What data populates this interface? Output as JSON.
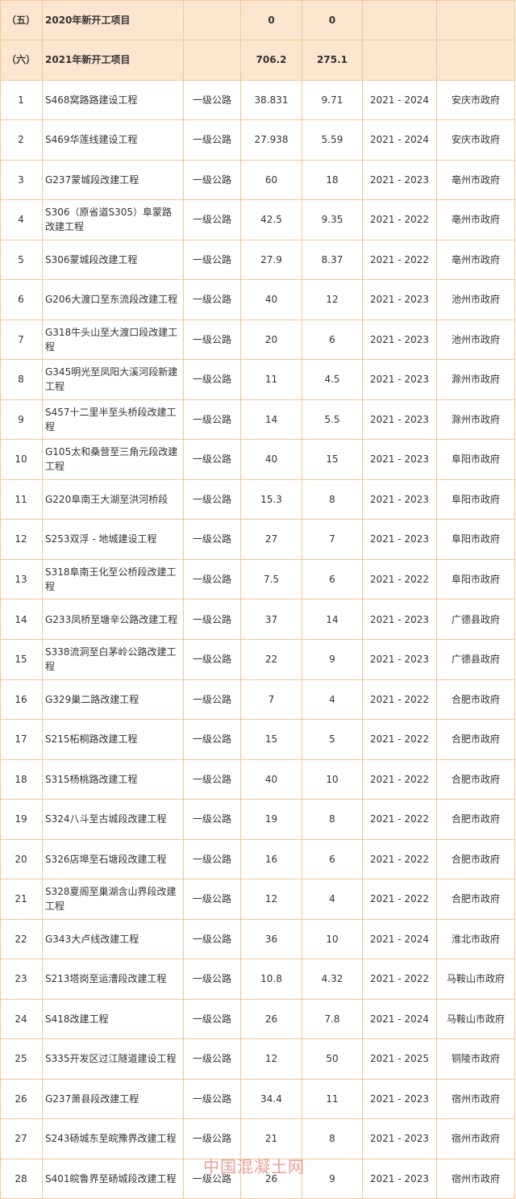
{
  "table": {
    "sections": [
      {
        "no": "（五）",
        "name": "2020年新开工项目",
        "v1": "0",
        "v2": "0"
      },
      {
        "no": "（六）",
        "name": "2021年新开工项目",
        "v1": "706.2",
        "v2": "275.1"
      }
    ],
    "rows": [
      [
        "1",
        "S468窝路路建设工程",
        "一级公路",
        "38.831",
        "9.71",
        "2021 - 2024",
        "安庆市政府"
      ],
      [
        "2",
        "S469华莲线建设工程",
        "一级公路",
        "27.938",
        "5.59",
        "2021 - 2024",
        "安庆市政府"
      ],
      [
        "3",
        "G237蒙城段改建工程",
        "一级公路",
        "60",
        "18",
        "2021 - 2023",
        "亳州市政府"
      ],
      [
        "4",
        "S306（原省道S305）阜蒙路改建工程",
        "一级公路",
        "42.5",
        "9.35",
        "2021 - 2022",
        "亳州市政府"
      ],
      [
        "5",
        "S306蒙城段改建工程",
        "一级公路",
        "27.9",
        "8.37",
        "2021 - 2022",
        "亳州市政府"
      ],
      [
        "6",
        "G206大渡口至东流段改建工程",
        "一级公路",
        "40",
        "12",
        "2021 - 2023",
        "池州市政府"
      ],
      [
        "7",
        "G318牛头山至大渡口段改建工程",
        "一级公路",
        "20",
        "6",
        "2021 - 2023",
        "池州市政府"
      ],
      [
        "8",
        "G345明光至凤阳大溪河段新建工程",
        "一级公路",
        "11",
        "4.5",
        "2021 - 2023",
        "滁州市政府"
      ],
      [
        "9",
        "S457十二里半至头桥段改建工程",
        "一级公路",
        "14",
        "5.5",
        "2021 - 2023",
        "滁州市政府"
      ],
      [
        "10",
        "G105太和桑营至三角元段改建工程",
        "一级公路",
        "40",
        "15",
        "2021 - 2023",
        "阜阳市政府"
      ],
      [
        "11",
        "G220阜南王大湖至洪河桥段",
        "一级公路",
        "15.3",
        "8",
        "2021 - 2023",
        "阜阳市政府"
      ],
      [
        "12",
        "S253双浮 - 地城建设工程",
        "一级公路",
        "27",
        "7",
        "2021 - 2023",
        "阜阳市政府"
      ],
      [
        "13",
        "S318阜南王化至公桥段改建工程",
        "一级公路",
        "7.5",
        "6",
        "2021 - 2022",
        "阜阳市政府"
      ],
      [
        "14",
        "G233凤桥至塘辛公路改建工程",
        "一级公路",
        "37",
        "14",
        "2021 - 2023",
        "广德县政府"
      ],
      [
        "15",
        "S338流洞至白茅岭公路改建工程",
        "一级公路",
        "22",
        "9",
        "2021 - 2023",
        "广德县政府"
      ],
      [
        "16",
        "G329巢二路改建工程",
        "一级公路",
        "7",
        "4",
        "2021 - 2022",
        "合肥市政府"
      ],
      [
        "17",
        "S215柘桐路改建工程",
        "一级公路",
        "15",
        "5",
        "2021 - 2022",
        "合肥市政府"
      ],
      [
        "18",
        "S315杨桃路改建工程",
        "一级公路",
        "40",
        "10",
        "2021 - 2022",
        "合肥市政府"
      ],
      [
        "19",
        "S324八斗至古城段改建工程",
        "一级公路",
        "19",
        "8",
        "2021 - 2022",
        "合肥市政府"
      ],
      [
        "20",
        "S326店埠至石塘段改建工程",
        "一级公路",
        "16",
        "6",
        "2021 - 2022",
        "合肥市政府"
      ],
      [
        "21",
        "S328夏阁至巢湖含山界段改建工程",
        "一级公路",
        "12",
        "4",
        "2021 - 2022",
        "合肥市政府"
      ],
      [
        "22",
        "G343大卢线改建工程",
        "一级公路",
        "36",
        "10",
        "2021 - 2024",
        "淮北市政府"
      ],
      [
        "23",
        "S213塔岗至运漕段改建工程",
        "一级公路",
        "10.8",
        "4.32",
        "2021 - 2022",
        "马鞍山市政府"
      ],
      [
        "24",
        "S418改建工程",
        "一级公路",
        "26",
        "7.8",
        "2021 - 2024",
        "马鞍山市政府"
      ],
      [
        "25",
        "S335开发区过江隧道建设工程",
        "一级公路",
        "12",
        "50",
        "2021 - 2025",
        "铜陵市政府"
      ],
      [
        "26",
        "G237萧县段改建工程",
        "一级公路",
        "34.4",
        "11",
        "2021 - 2023",
        "宿州市政府"
      ],
      [
        "27",
        "S243砀城东至皖豫界改建工程",
        "一级公路",
        "21",
        "8",
        "2021 - 2023",
        "宿州市政府"
      ],
      [
        "28",
        "S401皖鲁界至砀城段改建工程",
        "一级公路",
        "26",
        "9",
        "2021 - 2023",
        "宿州市政府"
      ]
    ]
  },
  "watermark": "中国混凝土网"
}
